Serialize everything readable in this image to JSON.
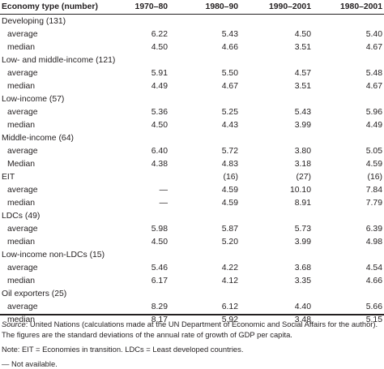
{
  "table": {
    "header": {
      "label": "Economy type (number)",
      "columns": [
        "1970–80",
        "1980–90",
        "1990–2001",
        "1980–2001"
      ]
    },
    "groups": [
      {
        "name": "Developing (131)",
        "group_values": [
          "",
          "",
          "",
          ""
        ],
        "rows": [
          {
            "label": "average",
            "values": [
              "6.22",
              "5.43",
              "4.50",
              "5.40"
            ]
          },
          {
            "label": "median",
            "values": [
              "4.50",
              "4.66",
              "3.51",
              "4.67"
            ]
          }
        ]
      },
      {
        "name": "Low- and middle-income (121)",
        "group_values": [
          "",
          "",
          "",
          ""
        ],
        "rows": [
          {
            "label": "average",
            "values": [
              "5.91",
              "5.50",
              "4.57",
              "5.48"
            ]
          },
          {
            "label": "median",
            "values": [
              "4.49",
              "4.67",
              "3.51",
              "4.67"
            ]
          }
        ]
      },
      {
        "name": "Low-income (57)",
        "group_values": [
          "",
          "",
          "",
          ""
        ],
        "rows": [
          {
            "label": "average",
            "values": [
              "5.36",
              "5.25",
              "5.43",
              "5.96"
            ]
          },
          {
            "label": "median",
            "values": [
              "4.50",
              "4.43",
              "3.99",
              "4.49"
            ]
          }
        ]
      },
      {
        "name": "Middle-income (64)",
        "group_values": [
          "",
          "",
          "",
          ""
        ],
        "rows": [
          {
            "label": "average",
            "values": [
              "6.40",
              "5.72",
              "3.80",
              "5.05"
            ]
          },
          {
            "label": "Median",
            "values": [
              "4.38",
              "4.83",
              "3.18",
              "4.59"
            ]
          }
        ]
      },
      {
        "name": "EIT",
        "group_values": [
          "",
          "(16)",
          "(27)",
          "(16)"
        ],
        "rows": [
          {
            "label": "average",
            "values": [
              "—",
              "4.59",
              "10.10",
              "7.84"
            ]
          },
          {
            "label": "median",
            "values": [
              "—",
              "4.59",
              "8.91",
              "7.79"
            ]
          }
        ]
      },
      {
        "name": "LDCs (49)",
        "group_values": [
          "",
          "",
          "",
          ""
        ],
        "rows": [
          {
            "label": "average",
            "values": [
              "5.98",
              "5.87",
              "5.73",
              "6.39"
            ]
          },
          {
            "label": "median",
            "values": [
              "4.50",
              "5.20",
              "3.99",
              "4.98"
            ]
          }
        ]
      },
      {
        "name": "Low-income non-LDCs (15)",
        "group_values": [
          "",
          "",
          "",
          ""
        ],
        "rows": [
          {
            "label": "average",
            "values": [
              "5.46",
              "4.22",
              "3.68",
              "4.54"
            ]
          },
          {
            "label": "median",
            "values": [
              "6.17",
              "4.12",
              "3.35",
              "4.66"
            ]
          }
        ]
      },
      {
        "name": "Oil exporters (25)",
        "group_values": [
          "",
          "",
          "",
          ""
        ],
        "rows": [
          {
            "label": "average",
            "values": [
              "8.29",
              "6.12",
              "4.40",
              "5.66"
            ]
          },
          {
            "label": "median",
            "values": [
              "8.17",
              "5.92",
              "3.48",
              "5.15"
            ]
          }
        ]
      }
    ]
  },
  "notes": {
    "source_label": "Source",
    "source_text": ": United Nations (calculations made at the UN Department of Economic and Social Affairs for the author). The figures are the standard deviations of the annual rate of growth of GDP per capita.",
    "note": "Note: EIT = Economies in transition. LDCs = Least developed countries.",
    "dash_note": "— Not available."
  }
}
